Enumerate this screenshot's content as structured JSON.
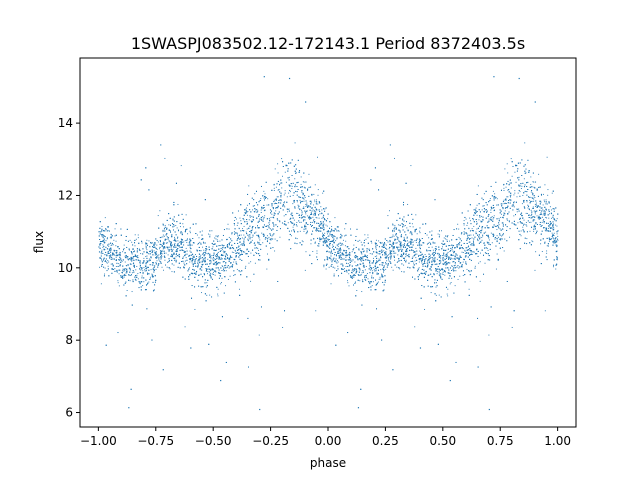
{
  "chart_data": {
    "type": "scatter",
    "title": "1SWASPJ083502.12-172143.1 Period 8372403.5s",
    "xlabel": "phase",
    "ylabel": "flux",
    "xlim": [
      -1.08,
      1.08
    ],
    "ylim": [
      5.6,
      15.8
    ],
    "x_ticks": [
      -1.0,
      -0.75,
      -0.5,
      -0.25,
      0.0,
      0.25,
      0.5,
      0.75,
      1.0
    ],
    "x_tick_labels": [
      "−1.00",
      "−0.75",
      "−0.50",
      "−0.25",
      "0.00",
      "0.25",
      "0.50",
      "0.75",
      "1.00"
    ],
    "y_ticks": [
      6,
      8,
      10,
      12,
      14
    ],
    "y_tick_labels": [
      "6",
      "8",
      "10",
      "12",
      "14"
    ],
    "grid": false,
    "legend": "none",
    "marker_color": "#1f77b4",
    "series": [
      {
        "points_per_phase_cycle": 2,
        "profile": {
          "phase": [
            0.0,
            0.05,
            0.1,
            0.15,
            0.2,
            0.25,
            0.3,
            0.35,
            0.4,
            0.45,
            0.5,
            0.55,
            0.6,
            0.65,
            0.7,
            0.75,
            0.8,
            0.85,
            0.9,
            0.95,
            1.0
          ],
          "flux": [
            10.7,
            10.5,
            10.1,
            10.2,
            10.1,
            10.3,
            10.8,
            10.7,
            10.4,
            10.2,
            10.1,
            10.3,
            10.6,
            11.0,
            11.2,
            11.3,
            12.1,
            11.8,
            11.6,
            11.3,
            10.7
          ],
          "scatter": [
            0.7,
            0.6,
            0.6,
            0.6,
            0.6,
            0.6,
            0.7,
            0.7,
            0.7,
            0.7,
            0.7,
            0.7,
            0.8,
            0.9,
            0.9,
            0.9,
            1.0,
            1.0,
            0.9,
            0.8,
            0.7
          ]
        },
        "outliers": [
          {
            "x": -0.87,
            "y": 6.15
          },
          {
            "x": 0.13,
            "y": 6.15
          },
          {
            "x": -0.72,
            "y": 7.2
          },
          {
            "x": 0.28,
            "y": 7.2
          },
          {
            "x": -0.3,
            "y": 6.1
          },
          {
            "x": 0.7,
            "y": 6.1
          },
          {
            "x": -0.28,
            "y": 15.3
          },
          {
            "x": 0.72,
            "y": 15.3
          },
          {
            "x": -0.17,
            "y": 15.25
          },
          {
            "x": 0.83,
            "y": 15.25
          },
          {
            "x": -0.47,
            "y": 6.9
          },
          {
            "x": 0.53,
            "y": 6.9
          },
          {
            "x": -0.6,
            "y": 7.8
          },
          {
            "x": 0.4,
            "y": 7.8
          },
          {
            "x": -0.1,
            "y": 14.6
          },
          {
            "x": 0.9,
            "y": 14.6
          }
        ]
      }
    ]
  }
}
